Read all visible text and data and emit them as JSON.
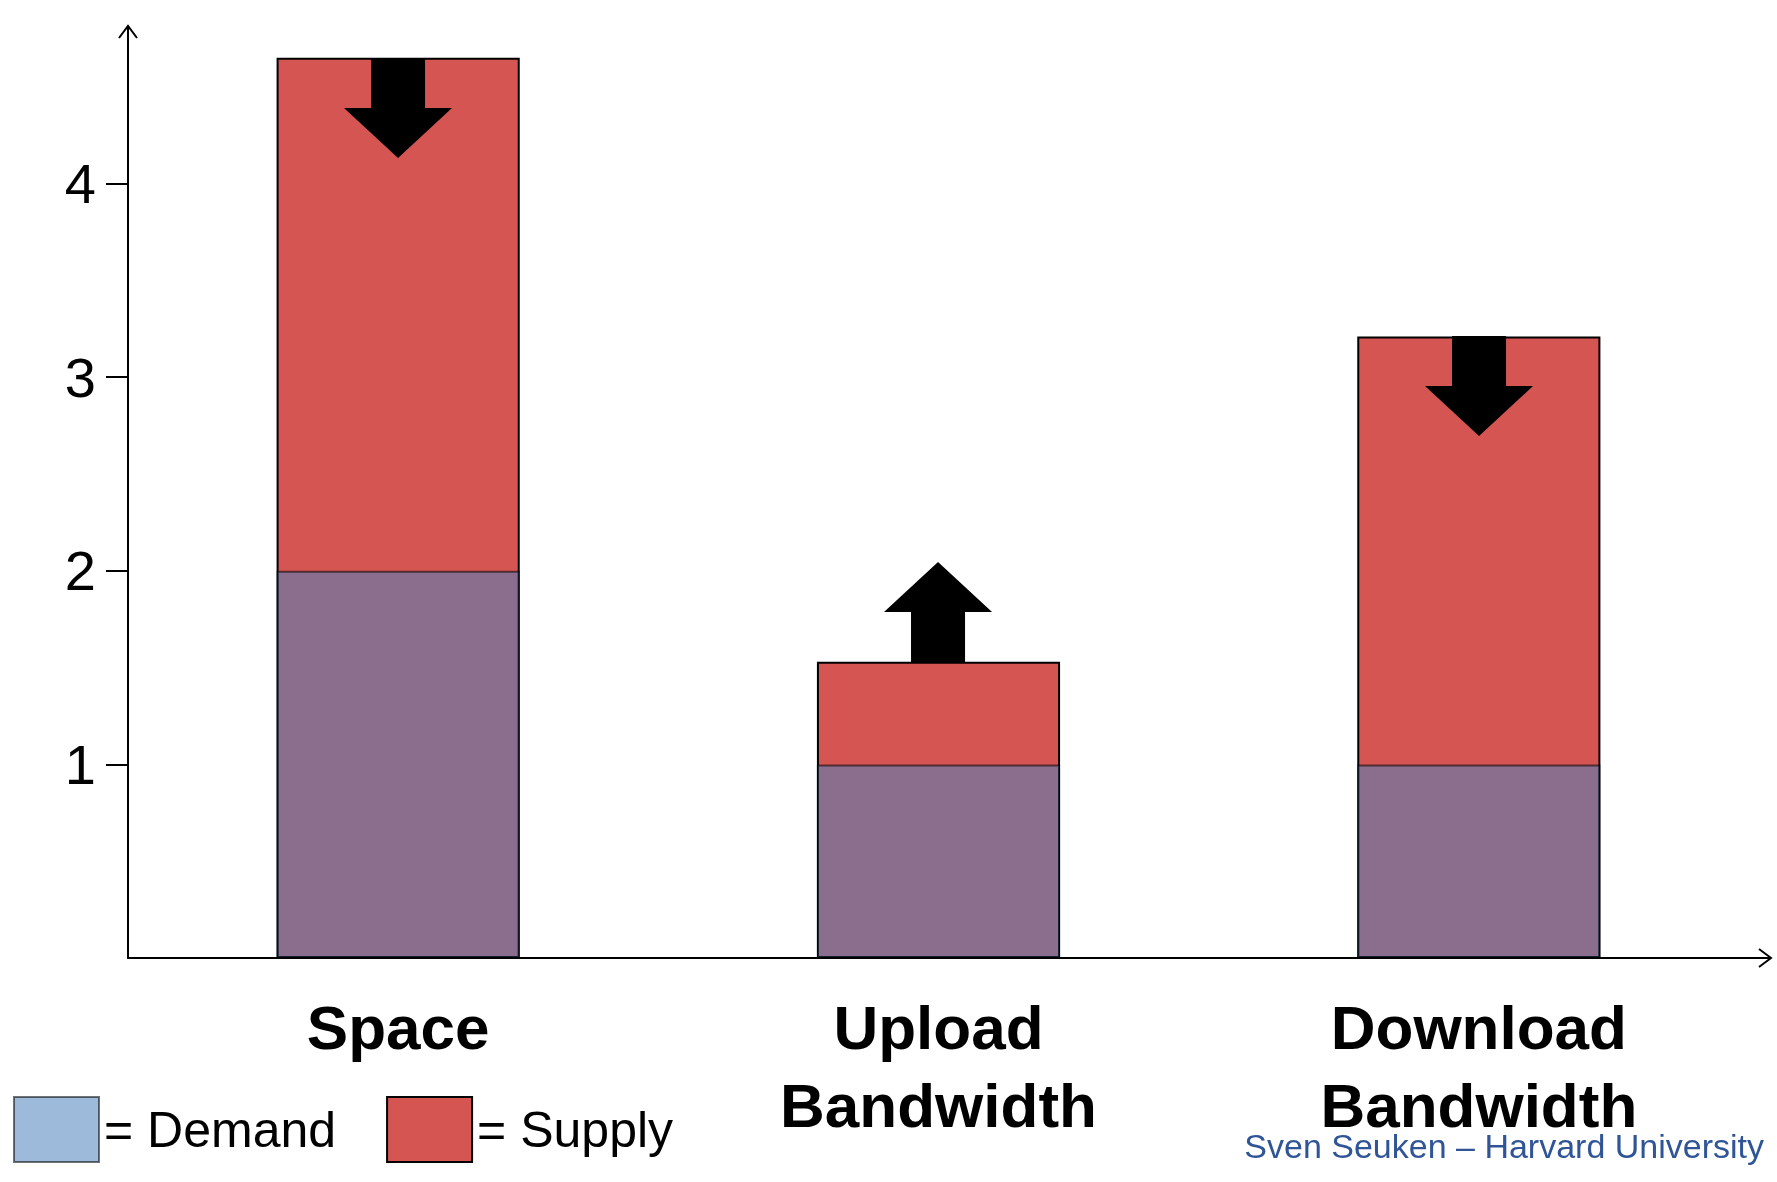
{
  "chart_data": {
    "type": "bar",
    "categories": [
      "Space",
      "Upload\nBandwidth",
      "Download\nBandwidth"
    ],
    "series": [
      {
        "name": "= Supply",
        "color": "#d55553",
        "values": [
          4.65,
          1.53,
          3.21
        ]
      },
      {
        "name": "= Demand",
        "color": "#4f81bd",
        "values": [
          2,
          1,
          1
        ]
      }
    ],
    "ylim": [
      0,
      4.7
    ],
    "yticks": [
      1,
      2,
      3,
      4
    ],
    "grid": false,
    "legend": "bottom left",
    "annotations": [
      "Sven Seuken – Harvard University"
    ]
  }
}
